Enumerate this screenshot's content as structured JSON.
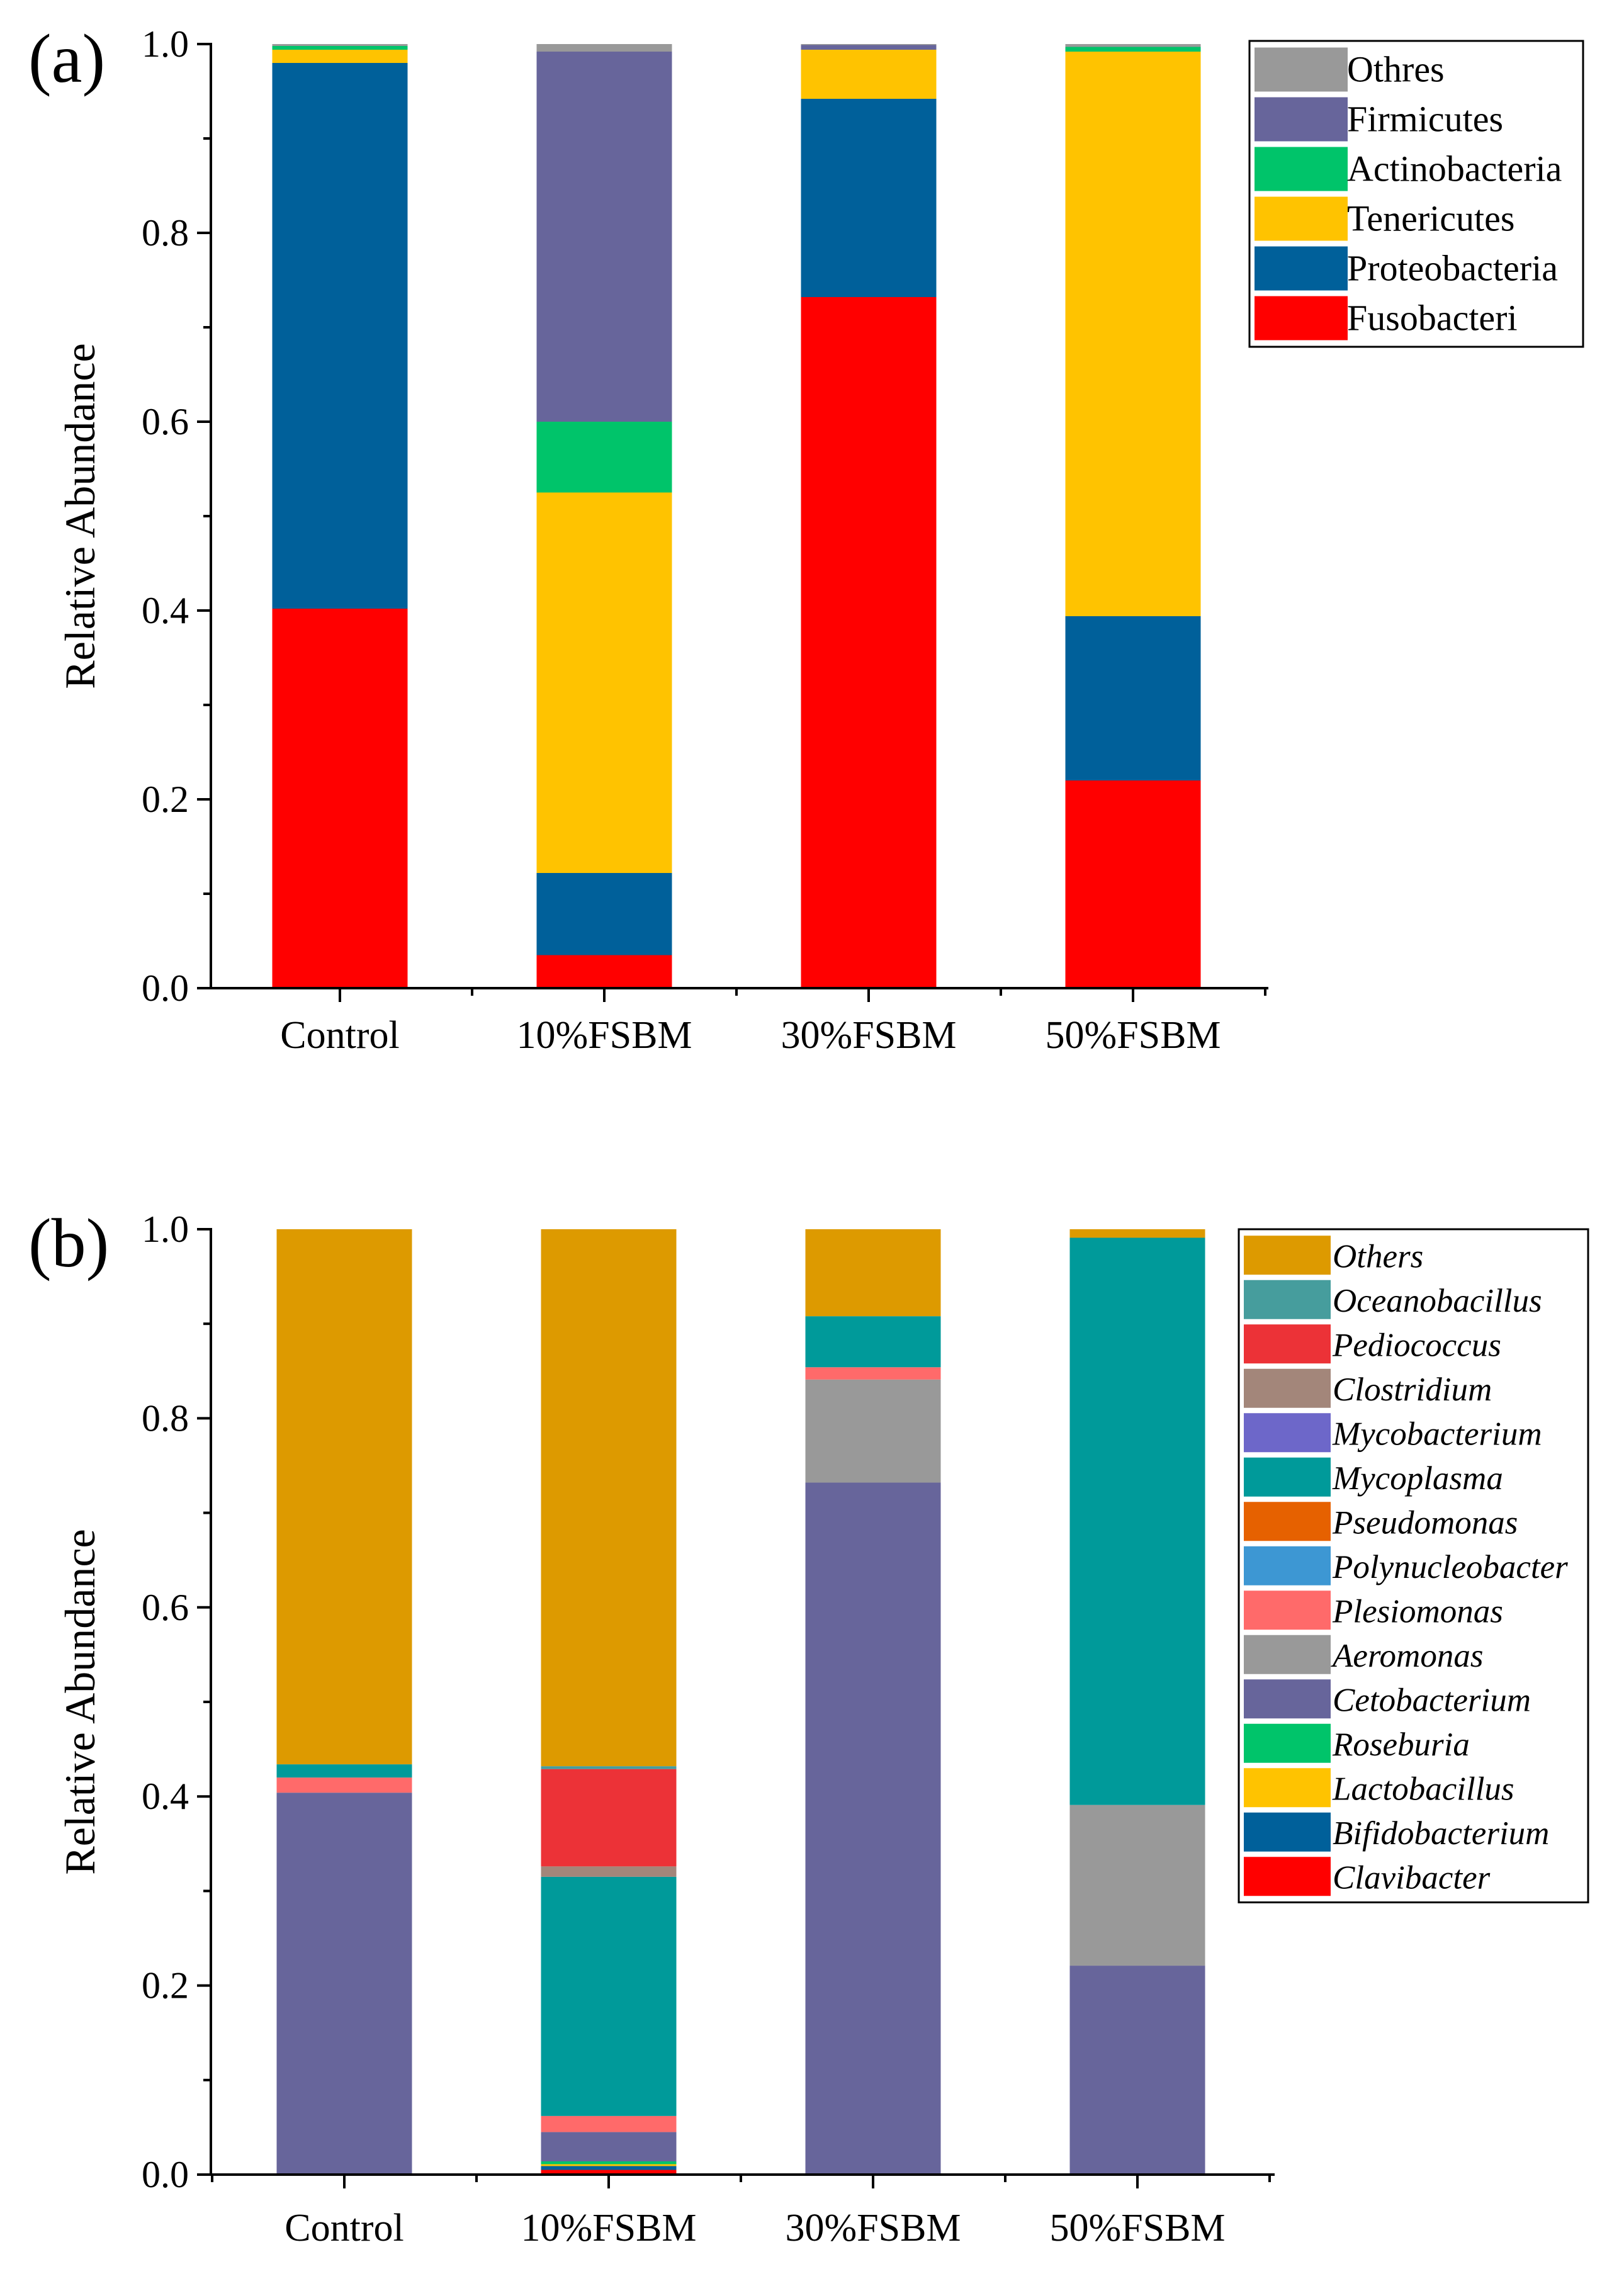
{
  "chart_data": [
    {
      "type": "bar",
      "stacked": true,
      "panel_label": "(a)",
      "ylabel": "Relative Abundance",
      "ylim": [
        0,
        1.0
      ],
      "yticks": [
        "0.0",
        "0.2",
        "0.4",
        "0.6",
        "0.8",
        "1.0"
      ],
      "categories": [
        "Control",
        "10%FSBM",
        "30%FSBM",
        "50%FSBM"
      ],
      "legend_position": "top-right",
      "legend_italic": false,
      "legend_order": [
        "Othres",
        "Firmicutes",
        "Actinobacteria",
        "Tenericutes",
        "Proteobacteria",
        "Fusobacteri"
      ],
      "series": [
        {
          "name": "Fusobacteri",
          "color": "#FF0000",
          "values": [
            0.402,
            0.035,
            0.732,
            0.22
          ]
        },
        {
          "name": "Proteobacteria",
          "color": "#00609A",
          "values": [
            0.578,
            0.087,
            0.21,
            0.174
          ]
        },
        {
          "name": "Tenericutes",
          "color": "#FFC300",
          "values": [
            0.014,
            0.403,
            0.052,
            0.598
          ]
        },
        {
          "name": "Actinobacteria",
          "color": "#00C46A",
          "values": [
            0.004,
            0.075,
            0.0,
            0.005
          ]
        },
        {
          "name": "Firmicutes",
          "color": "#67659B",
          "values": [
            0.0,
            0.392,
            0.005,
            0.0
          ]
        },
        {
          "name": "Othres",
          "color": "#999999",
          "values": [
            0.002,
            0.008,
            0.001,
            0.003
          ]
        }
      ]
    },
    {
      "type": "bar",
      "stacked": true,
      "panel_label": "(b)",
      "ylabel": "Relative Abundance",
      "ylim": [
        0,
        1.0
      ],
      "yticks": [
        "0.0",
        "0.2",
        "0.4",
        "0.6",
        "0.8",
        "1.0"
      ],
      "categories": [
        "Control",
        "10%FSBM",
        "30%FSBM",
        "50%FSBM"
      ],
      "legend_position": "top-right",
      "legend_italic": true,
      "legend_order": [
        "Others",
        "Oceanobacillus",
        "Pediococcus",
        "Clostridium",
        "Mycobacterium",
        "Mycoplasma",
        "Pseudomonas",
        "Polynucleobacter",
        "Plesiomonas",
        "Aeromonas",
        "Cetobacterium",
        "Roseburia",
        "Lactobacillus",
        "Bifidobacterium",
        "Clavibacter"
      ],
      "series": [
        {
          "name": "Clavibacter",
          "color": "#FF0000",
          "values": [
            0.0,
            0.005,
            0.0,
            0.0
          ]
        },
        {
          "name": "Bifidobacterium",
          "color": "#00609A",
          "values": [
            0.0,
            0.004,
            0.0,
            0.0
          ]
        },
        {
          "name": "Lactobacillus",
          "color": "#FFC300",
          "values": [
            0.0,
            0.002,
            0.0,
            0.0
          ]
        },
        {
          "name": "Roseburia",
          "color": "#00C46A",
          "values": [
            0.0,
            0.003,
            0.0,
            0.0
          ]
        },
        {
          "name": "Cetobacterium",
          "color": "#67659B",
          "values": [
            0.404,
            0.031,
            0.732,
            0.221
          ]
        },
        {
          "name": "Aeromonas",
          "color": "#999999",
          "values": [
            0.0,
            0.0,
            0.109,
            0.17
          ]
        },
        {
          "name": "Plesiomonas",
          "color": "#FF6A6A",
          "values": [
            0.016,
            0.017,
            0.013,
            0.0
          ]
        },
        {
          "name": "Polynucleobacter",
          "color": "#3D97D3",
          "values": [
            0.0,
            0.0,
            0.0,
            0.0
          ]
        },
        {
          "name": "Pseudomonas",
          "color": "#E66100",
          "values": [
            0.0,
            0.0,
            0.0,
            0.0
          ]
        },
        {
          "name": "Mycoplasma",
          "color": "#009A9A",
          "values": [
            0.014,
            0.253,
            0.054,
            0.6
          ]
        },
        {
          "name": "Mycobacterium",
          "color": "#6D67C9",
          "values": [
            0.0,
            0.0,
            0.0,
            0.0
          ]
        },
        {
          "name": "Clostridium",
          "color": "#A3867A",
          "values": [
            0.0,
            0.011,
            0.0,
            0.0
          ]
        },
        {
          "name": "Pediococcus",
          "color": "#EC3237",
          "values": [
            0.0,
            0.103,
            0.0,
            0.0
          ]
        },
        {
          "name": "Oceanobacillus",
          "color": "#469D9D",
          "values": [
            0.0,
            0.003,
            0.0,
            0.0
          ]
        },
        {
          "name": "Others",
          "color": "#DD9A00",
          "values": [
            0.566,
            0.568,
            0.092,
            0.009
          ]
        }
      ]
    }
  ]
}
